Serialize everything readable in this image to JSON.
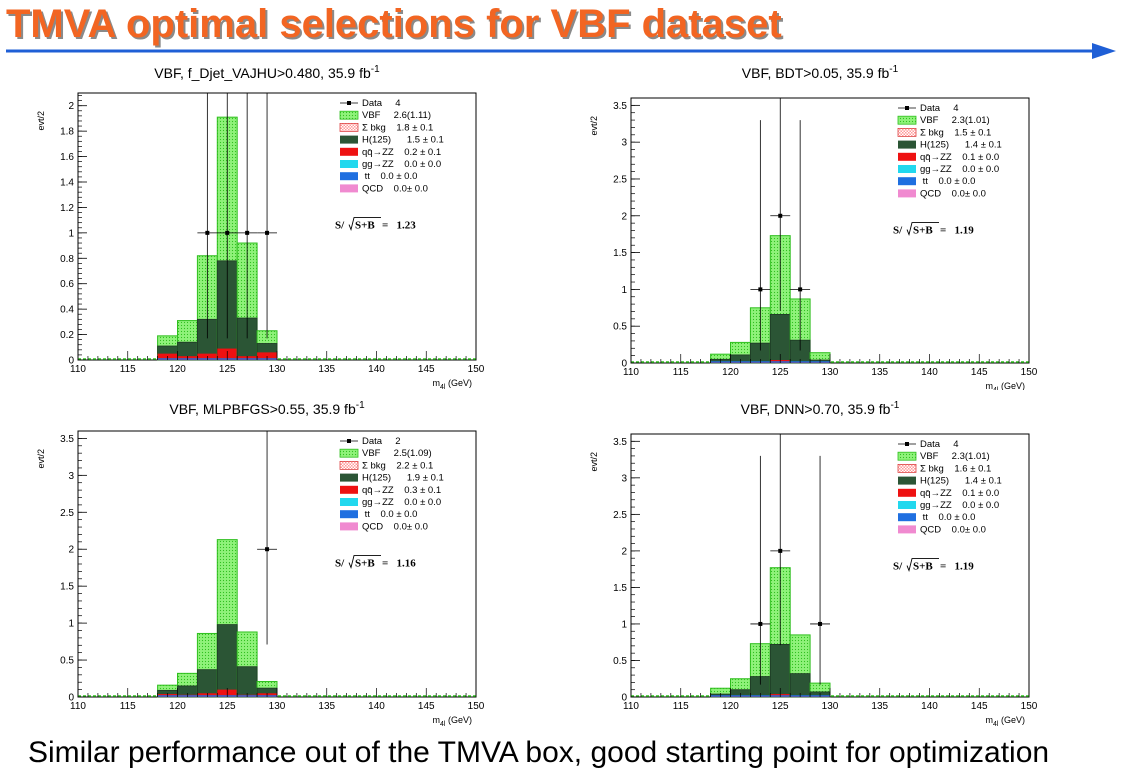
{
  "slide": {
    "title": "TMVA optimal selections for VBF dataset",
    "footer": "Similar performance out of the TMVA box, good starting point for optimization"
  },
  "colors": {
    "title": "#f26522",
    "arrow": "#1f5fd6",
    "vbf_fill": "#8ff27a",
    "vbf_line": "#2fbf1e",
    "h125": "#2b5535",
    "qqzz": "#ee1111",
    "ggzz": "#22d8ee",
    "tt": "#1f6fe0",
    "qcd": "#f08ad0",
    "bkg_hatch": "#ff9a9a"
  },
  "chart_data": [
    {
      "type": "bar",
      "title_main": "VBF, f_Djet_VAJHU>0.480, 35.9 fb",
      "title_sup": "-1",
      "ylabel": "evt/2",
      "xlabel_main": "m",
      "xlabel_sub": "4l",
      "xlabel_unit": " (GeV)",
      "xlim": [
        110,
        150
      ],
      "ylim": [
        0,
        2.1
      ],
      "yticks_major": [
        0,
        0.2,
        0.4,
        0.6,
        0.8,
        1,
        1.2,
        1.4,
        1.6,
        1.8,
        2
      ],
      "ytick_labels": [
        "0",
        "0.2",
        "0.4",
        "0.6",
        "0.8",
        "1",
        "1.2",
        "1.4",
        "1.6",
        "1.8",
        "2"
      ],
      "xticks_major": [
        110,
        115,
        120,
        125,
        130,
        135,
        140,
        145,
        150
      ],
      "xtick_labels": [
        "110",
        "115",
        "120",
        "125",
        "130",
        "135",
        "140",
        "145",
        "150"
      ],
      "bin_edges": [
        118,
        120,
        122,
        124,
        126,
        128,
        130
      ],
      "vbf_total": [
        0.19,
        0.31,
        0.82,
        1.91,
        0.92,
        0.23
      ],
      "h125_total": [
        0.11,
        0.14,
        0.32,
        0.78,
        0.33,
        0.13
      ],
      "qqzz": [
        0.05,
        0.03,
        0.05,
        0.09,
        0.03,
        0.06
      ],
      "data_points": [
        {
          "x": 123,
          "y": 1
        },
        {
          "x": 125,
          "y": 1
        },
        {
          "x": 127,
          "y": 1
        },
        {
          "x": 129,
          "y": 1
        }
      ],
      "legend": [
        {
          "key": "data",
          "label": "Data     4"
        },
        {
          "key": "vbf",
          "label": "VBF     2.6(1.11)"
        },
        {
          "key": "bkg",
          "label": "Σ bkg    1.8 ± 0.1"
        },
        {
          "key": "h125",
          "label": "H(125)      1.5 ± 0.1"
        },
        {
          "key": "qqzz",
          "label": "qq̄→ZZ    0.2 ± 0.1"
        },
        {
          "key": "ggzz",
          "label": "gg→ZZ    0.0 ± 0.0"
        },
        {
          "key": "tt",
          "label": " tt    0.0 ± 0.0"
        },
        {
          "key": "qcd",
          "label": "QCD    0.0± 0.0"
        }
      ],
      "sig_prefix": "S/",
      "sig_root": "S+B",
      "sig_value": "=   1.23"
    },
    {
      "type": "bar",
      "title_main": "VBF, BDT>0.05, 35.9 fb",
      "title_sup": "-1",
      "ylabel": "evt/2",
      "xlabel_main": "m",
      "xlabel_sub": "4l",
      "xlabel_unit": " (GeV)",
      "xlim": [
        110,
        150
      ],
      "ylim": [
        0,
        3.6
      ],
      "yticks_major": [
        0,
        0.5,
        1,
        1.5,
        2,
        2.5,
        3,
        3.5
      ],
      "ytick_labels": [
        "0",
        "0.5",
        "1",
        "1.5",
        "2",
        "2.5",
        "3",
        "3.5"
      ],
      "xticks_major": [
        110,
        115,
        120,
        125,
        130,
        135,
        140,
        145,
        150
      ],
      "xtick_labels": [
        "110",
        "115",
        "120",
        "125",
        "130",
        "135",
        "140",
        "145",
        "150"
      ],
      "bin_edges": [
        118,
        120,
        122,
        124,
        126,
        128,
        130
      ],
      "vbf_total": [
        0.12,
        0.28,
        0.75,
        1.73,
        0.87,
        0.14
      ],
      "h125_total": [
        0.05,
        0.11,
        0.27,
        0.66,
        0.31,
        0.04
      ],
      "qqzz": [
        0.02,
        0.02,
        0.02,
        0.04,
        0.02,
        0.01
      ],
      "data_points": [
        {
          "x": 123,
          "y": 1
        },
        {
          "x": 125,
          "y": 2
        },
        {
          "x": 127,
          "y": 1
        }
      ],
      "legend": [
        {
          "key": "data",
          "label": "Data     4"
        },
        {
          "key": "vbf",
          "label": "VBF     2.3(1.01)"
        },
        {
          "key": "bkg",
          "label": "Σ bkg    1.5 ± 0.1"
        },
        {
          "key": "h125",
          "label": "H(125)      1.4 ± 0.1"
        },
        {
          "key": "qqzz",
          "label": "qq̄→ZZ    0.1 ± 0.0"
        },
        {
          "key": "ggzz",
          "label": "gg→ZZ    0.0 ± 0.0"
        },
        {
          "key": "tt",
          "label": " tt    0.0 ± 0.0"
        },
        {
          "key": "qcd",
          "label": "QCD    0.0± 0.0"
        }
      ],
      "sig_prefix": "S/",
      "sig_root": "S+B",
      "sig_value": "=   1.19"
    },
    {
      "type": "bar",
      "title_main": "VBF, MLPBFGS>0.55, 35.9 fb",
      "title_sup": "-1",
      "ylabel": "evt/2",
      "xlabel_main": "m",
      "xlabel_sub": "4l",
      "xlabel_unit": " (GeV)",
      "xlim": [
        110,
        150
      ],
      "ylim": [
        0,
        3.6
      ],
      "yticks_major": [
        0,
        0.5,
        1,
        1.5,
        2,
        2.5,
        3,
        3.5
      ],
      "ytick_labels": [
        "0",
        "0.5",
        "1",
        "1.5",
        "2",
        "2.5",
        "3",
        "3.5"
      ],
      "xticks_major": [
        110,
        115,
        120,
        125,
        130,
        135,
        140,
        145,
        150
      ],
      "xtick_labels": [
        "110",
        "115",
        "120",
        "125",
        "130",
        "135",
        "140",
        "145",
        "150"
      ],
      "bin_edges": [
        118,
        120,
        122,
        124,
        126,
        128,
        130
      ],
      "vbf_total": [
        0.16,
        0.32,
        0.86,
        2.13,
        0.88,
        0.21
      ],
      "h125_total": [
        0.09,
        0.15,
        0.37,
        0.98,
        0.41,
        0.12
      ],
      "qqzz": [
        0.04,
        0.03,
        0.05,
        0.1,
        0.03,
        0.05
      ],
      "data_points": [
        {
          "x": 129,
          "y": 2
        }
      ],
      "legend": [
        {
          "key": "data",
          "label": "Data     2"
        },
        {
          "key": "vbf",
          "label": "VBF     2.5(1.09)"
        },
        {
          "key": "bkg",
          "label": "Σ bkg    2.2 ± 0.1"
        },
        {
          "key": "h125",
          "label": "H(125)      1.9 ± 0.1"
        },
        {
          "key": "qqzz",
          "label": "qq̄→ZZ    0.3 ± 0.1"
        },
        {
          "key": "ggzz",
          "label": "gg→ZZ    0.0 ± 0.0"
        },
        {
          "key": "tt",
          "label": " tt    0.0 ± 0.0"
        },
        {
          "key": "qcd",
          "label": "QCD    0.0± 0.0"
        }
      ],
      "sig_prefix": "S/",
      "sig_root": "S+B",
      "sig_value": "=   1.16"
    },
    {
      "type": "bar",
      "title_main": "VBF, DNN>0.70, 35.9 fb",
      "title_sup": "-1",
      "ylabel": "evt/2",
      "xlabel_main": "m",
      "xlabel_sub": "4l",
      "xlabel_unit": " (GeV)",
      "xlim": [
        110,
        150
      ],
      "ylim": [
        0,
        3.6
      ],
      "yticks_major": [
        0,
        0.5,
        1,
        1.5,
        2,
        2.5,
        3,
        3.5
      ],
      "ytick_labels": [
        "0",
        "0.5",
        "1",
        "1.5",
        "2",
        "2.5",
        "3",
        "3.5"
      ],
      "xticks_major": [
        110,
        115,
        120,
        125,
        130,
        135,
        140,
        145,
        150
      ],
      "xtick_labels": [
        "110",
        "115",
        "120",
        "125",
        "130",
        "135",
        "140",
        "145",
        "150"
      ],
      "bin_edges": [
        118,
        120,
        122,
        124,
        126,
        128,
        130
      ],
      "vbf_total": [
        0.12,
        0.25,
        0.73,
        1.77,
        0.85,
        0.19
      ],
      "h125_total": [
        0.04,
        0.1,
        0.28,
        0.72,
        0.32,
        0.07
      ],
      "qqzz": [
        0.01,
        0.01,
        0.02,
        0.04,
        0.02,
        0.01
      ],
      "data_points": [
        {
          "x": 123,
          "y": 1
        },
        {
          "x": 125,
          "y": 2
        },
        {
          "x": 129,
          "y": 1
        }
      ],
      "legend": [
        {
          "key": "data",
          "label": "Data     4"
        },
        {
          "key": "vbf",
          "label": "VBF     2.3(1.01)"
        },
        {
          "key": "bkg",
          "label": "Σ bkg    1.6 ± 0.1"
        },
        {
          "key": "h125",
          "label": "H(125)      1.4 ± 0.1"
        },
        {
          "key": "qqzz",
          "label": "qq̄→ZZ    0.1 ± 0.0"
        },
        {
          "key": "ggzz",
          "label": "gg→ZZ    0.0 ± 0.0"
        },
        {
          "key": "tt",
          "label": " tt    0.0 ± 0.0"
        },
        {
          "key": "qcd",
          "label": "QCD    0.0± 0.0"
        }
      ],
      "sig_prefix": "S/",
      "sig_root": "S+B",
      "sig_value": "=   1.19"
    }
  ]
}
